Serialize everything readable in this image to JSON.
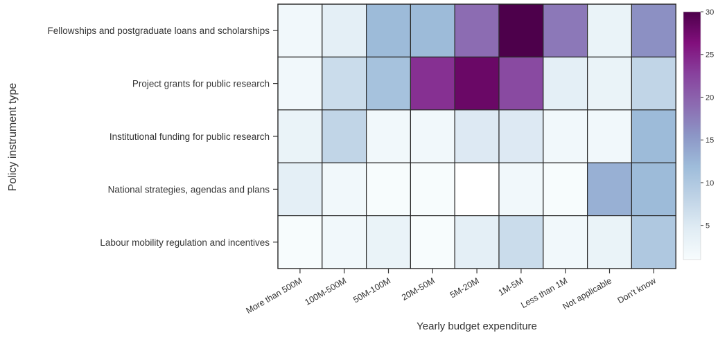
{
  "chart_data": {
    "type": "heatmap",
    "title": "",
    "xlabel": "Yearly budget expenditure",
    "ylabel": "Policy instrument type",
    "x_categories": [
      "More than 500M",
      "100M-500M",
      "50M-100M",
      "20M-50M",
      "5M-20M",
      "1M-5M",
      "Less than 1M",
      "Not applicable",
      "Don't know"
    ],
    "y_categories": [
      "Fellowships and postgraduate loans and scholarships",
      "Project grants for public research",
      "Institutional funding for public research",
      "National strategies, agendas and plans",
      "Labour mobility regulation and incentives"
    ],
    "values": [
      [
        2,
        4,
        12,
        12,
        19,
        30,
        18,
        3,
        16
      ],
      [
        2,
        7,
        11,
        24,
        28,
        22,
        4,
        3,
        8
      ],
      [
        3,
        8,
        2,
        2,
        5,
        5,
        2,
        2,
        12
      ],
      [
        4,
        2,
        1,
        1,
        0,
        2,
        1,
        13,
        12
      ],
      [
        1,
        2,
        3,
        1,
        4,
        7,
        2,
        3,
        10
      ]
    ],
    "colorbar": {
      "min": 1,
      "max": 30,
      "ticks": [
        5,
        10,
        15,
        20,
        25,
        30
      ],
      "colormap": "BuPu",
      "placement": "right"
    },
    "grid": true
  }
}
